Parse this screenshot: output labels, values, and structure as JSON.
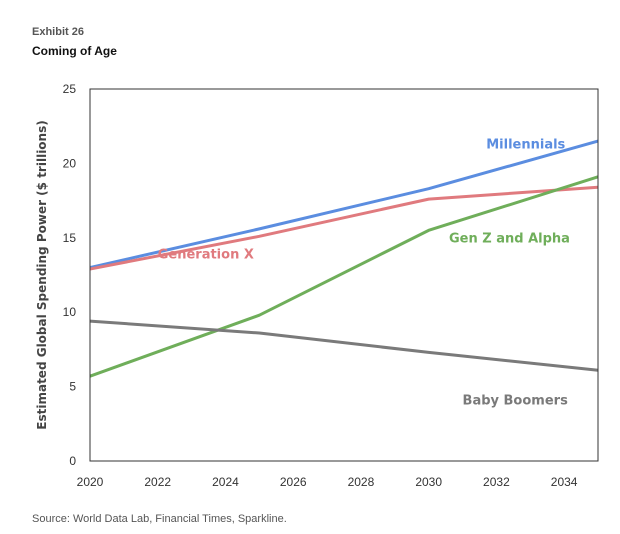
{
  "header": {
    "exhibit": "Exhibit 26",
    "title": "Coming of Age"
  },
  "footer": {
    "source": "Source: World Data Lab, Financial Times, Sparkline."
  },
  "chart_data": {
    "type": "line",
    "title": "Coming of Age",
    "xlabel": "",
    "ylabel": "Estimated Global Spending Power ($ trillions)",
    "xlim": [
      2020,
      2035
    ],
    "ylim": [
      0,
      25
    ],
    "x_ticks": [
      2020,
      2022,
      2024,
      2026,
      2028,
      2030,
      2032,
      2034
    ],
    "y_ticks": [
      0,
      5,
      10,
      15,
      20,
      25
    ],
    "grid": false,
    "legend": "inline labels",
    "series": [
      {
        "name": "Millennials",
        "color": "#5b8de0",
        "x": [
          2020,
          2025,
          2030,
          2035
        ],
        "values": [
          13.0,
          15.6,
          18.3,
          21.5
        ]
      },
      {
        "name": "Generation X",
        "color": "#e07a7e",
        "x": [
          2020,
          2025,
          2030,
          2035
        ],
        "values": [
          12.9,
          15.1,
          17.6,
          18.4
        ]
      },
      {
        "name": "Gen Z and Alpha",
        "color": "#6fae5a",
        "x": [
          2020,
          2025,
          2030,
          2035
        ],
        "values": [
          5.7,
          9.8,
          15.5,
          19.1
        ]
      },
      {
        "name": "Baby Boomers",
        "color": "#7a7a7a",
        "x": [
          2020,
          2025,
          2030,
          2035
        ],
        "values": [
          9.4,
          8.6,
          7.3,
          6.1
        ]
      }
    ]
  }
}
